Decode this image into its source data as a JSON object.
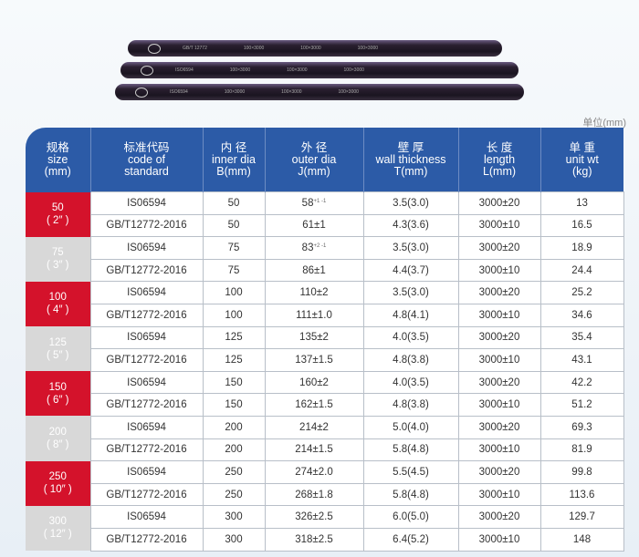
{
  "pipe_labels": [
    [
      "GB/T 12772",
      "100×3000",
      "100×3000",
      "100×3000"
    ],
    [
      "ISO6594",
      "100×3000",
      "100×3000",
      "100×3000"
    ],
    [
      "ISO6594",
      "100×3000",
      "100×3000",
      "100×3000"
    ]
  ],
  "unit_note": "单位(mm)",
  "colors": {
    "header": "#2c5ba7",
    "size_red": "#d4122b",
    "size_gray": "#d8d8d8"
  },
  "headers": [
    [
      "规格",
      "size",
      "(mm)"
    ],
    [
      "标准代码",
      "code of",
      "standard"
    ],
    [
      "内 径",
      "inner dia",
      "B(mm)"
    ],
    [
      "外 径",
      "outer dia",
      "J(mm)"
    ],
    [
      "壁 厚",
      "wall thickness",
      "T(mm)"
    ],
    [
      "长 度",
      "length",
      "L(mm)"
    ],
    [
      "单 重",
      "unit wt",
      "(kg)"
    ]
  ],
  "groups": [
    {
      "size": "50",
      "inch": "( 2″ )",
      "style": "red",
      "rows": [
        [
          "IS06594",
          "50",
          "58",
          "3.5(3.0)",
          "3000±20",
          "13",
          "+1 -1"
        ],
        [
          "GB/T12772-2016",
          "50",
          "61±1",
          "4.3(3.6)",
          "3000±10",
          "16.5"
        ]
      ]
    },
    {
      "size": "75",
      "inch": "( 3″ )",
      "style": "gray",
      "rows": [
        [
          "IS06594",
          "75",
          "83",
          "3.5(3.0)",
          "3000±20",
          "18.9",
          "+2 -1"
        ],
        [
          "GB/T12772-2016",
          "75",
          "86±1",
          "4.4(3.7)",
          "3000±10",
          "24.4"
        ]
      ]
    },
    {
      "size": "100",
      "inch": "( 4″ )",
      "style": "red",
      "rows": [
        [
          "IS06594",
          "100",
          "110±2",
          "3.5(3.0)",
          "3000±20",
          "25.2"
        ],
        [
          "GB/T12772-2016",
          "100",
          "111±1.0",
          "4.8(4.1)",
          "3000±10",
          "34.6"
        ]
      ]
    },
    {
      "size": "125",
      "inch": "( 5″ )",
      "style": "gray",
      "rows": [
        [
          "IS06594",
          "125",
          "135±2",
          "4.0(3.5)",
          "3000±20",
          "35.4"
        ],
        [
          "GB/T12772-2016",
          "125",
          "137±1.5",
          "4.8(3.8)",
          "3000±10",
          "43.1"
        ]
      ]
    },
    {
      "size": "150",
      "inch": "( 6″ )",
      "style": "red",
      "rows": [
        [
          "IS06594",
          "150",
          "160±2",
          "4.0(3.5)",
          "3000±20",
          "42.2"
        ],
        [
          "GB/T12772-2016",
          "150",
          "162±1.5",
          "4.8(3.8)",
          "3000±10",
          "51.2"
        ]
      ]
    },
    {
      "size": "200",
      "inch": "( 8″ )",
      "style": "gray",
      "rows": [
        [
          "IS06594",
          "200",
          "214±2",
          "5.0(4.0)",
          "3000±20",
          "69.3"
        ],
        [
          "GB/T12772-2016",
          "200",
          "214±1.5",
          "5.8(4.8)",
          "3000±10",
          "81.9"
        ]
      ]
    },
    {
      "size": "250",
      "inch": "( 10″ )",
      "style": "red",
      "rows": [
        [
          "IS06594",
          "250",
          "274±2.0",
          "5.5(4.5)",
          "3000±20",
          "99.8"
        ],
        [
          "GB/T12772-2016",
          "250",
          "268±1.8",
          "5.8(4.8)",
          "3000±10",
          "113.6"
        ]
      ]
    },
    {
      "size": "300",
      "inch": "( 12″ )",
      "style": "gray",
      "rows": [
        [
          "IS06594",
          "300",
          "326±2.5",
          "6.0(5.0)",
          "3000±20",
          "129.7"
        ],
        [
          "GB/T12772-2016",
          "300",
          "318±2.5",
          "6.4(5.2)",
          "3000±10",
          "148"
        ]
      ]
    }
  ]
}
